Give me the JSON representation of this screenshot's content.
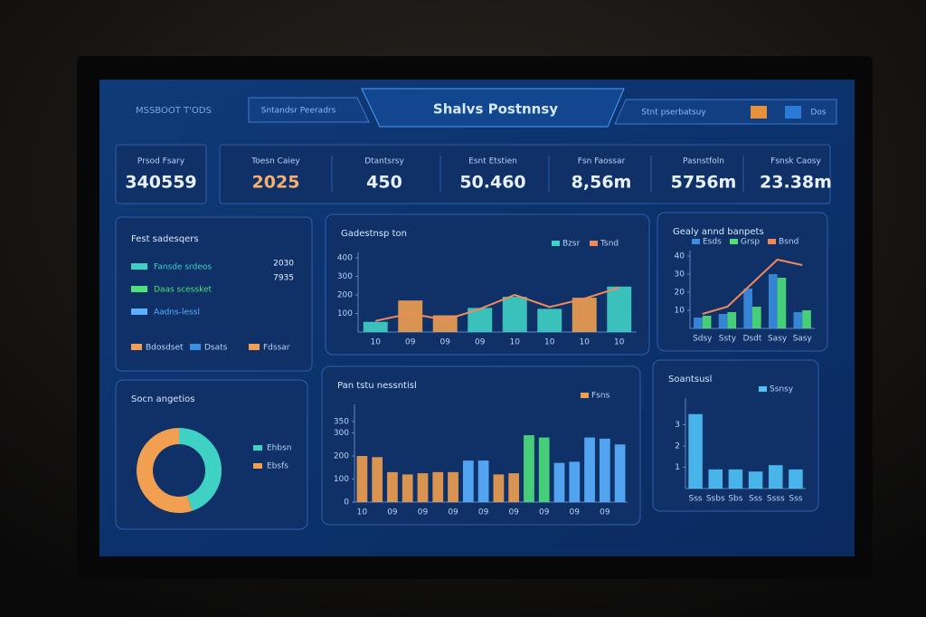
{
  "header": {
    "brand": "MSSBOOT T'ODS",
    "tab": "Sntandsr Peeradrs",
    "title": "Shalvs Postnnsy",
    "status": "Stnt pserbatsuy",
    "user": "Dos"
  },
  "kpis": [
    {
      "label": "Prsod Fsary",
      "value": "340559"
    },
    {
      "label": "Toesn Caiey",
      "value": "2025"
    },
    {
      "label": "Dtantsrsy",
      "value": "450"
    },
    {
      "label": "Esnt Etstien",
      "value": "50.460"
    },
    {
      "label": "Fsn Faossar",
      "value": "8,56m"
    },
    {
      "label": "Pasnstfoln",
      "value": "5756m"
    },
    {
      "label": "Fsnsk Caosy",
      "value": "23.38m"
    }
  ],
  "list_panel": {
    "title": "Fest sadesqers",
    "items": [
      {
        "label": "Fansde srdeos",
        "color": "#3fd1c4"
      },
      {
        "label": "Daas scessket",
        "color": "#4ee07a"
      },
      {
        "label": "Aadns-lessl",
        "color": "#5ab0ff"
      }
    ],
    "numbers": [
      "2030",
      "7935"
    ],
    "legend": [
      {
        "label": "Bdosdset",
        "color": "#f0a050"
      },
      {
        "label": "Dsats",
        "color": "#3b8fe0"
      },
      {
        "label": "Fdssar",
        "color": "#f0a050"
      }
    ]
  },
  "charts": [
    {
      "type": "bar",
      "title": "Gadestnsp ton",
      "categories": [
        "10",
        "09",
        "09",
        "09",
        "10",
        "10",
        "10",
        "10"
      ],
      "ylim": [
        0,
        400
      ],
      "yticks": [
        100,
        200,
        300,
        400
      ],
      "series": [
        {
          "name": "Bzsr",
          "type": "bar",
          "colors": [
            "#3fd1c4",
            "#f0a050",
            "#f0a050",
            "#3fd1c4",
            "#3fd1c4",
            "#3fd1c4",
            "#f0a050",
            "#3fd1c4"
          ],
          "values": [
            55,
            170,
            90,
            130,
            190,
            125,
            185,
            245
          ]
        },
        {
          "name": "Tsnd",
          "type": "line",
          "color": "#f08a5d",
          "values": [
            60,
            100,
            65,
            125,
            200,
            135,
            180,
            240
          ]
        }
      ]
    },
    {
      "type": "bar",
      "title": "Gealy annd banpets",
      "categories": [
        "Sdsy",
        "Ssty",
        "Dsdt",
        "Sasy",
        "Sasy"
      ],
      "ylim": [
        0,
        40
      ],
      "yticks": [
        10,
        20,
        30,
        40
      ],
      "series": [
        {
          "name": "Esds",
          "type": "bar",
          "color": "#3b8fe0",
          "values": [
            6,
            8,
            22,
            30,
            9
          ]
        },
        {
          "name": "Grsp",
          "type": "bar",
          "color": "#4ee07a",
          "values": [
            7,
            9,
            12,
            28,
            10
          ]
        },
        {
          "name": "Bsnd",
          "type": "line",
          "color": "#f08a5d",
          "values": [
            8,
            12,
            25,
            38,
            35
          ]
        }
      ]
    },
    {
      "type": "pie",
      "title": "Socn angetios",
      "categories": [
        "Ehbsn",
        "Ebsfs"
      ],
      "values": [
        45,
        55
      ],
      "colors": [
        "#3fd1c4",
        "#f0a050"
      ]
    },
    {
      "type": "bar",
      "title": "Pan tstu nessntisl",
      "categories": [
        "10",
        null,
        "09",
        null,
        "09",
        null,
        "09",
        null,
        "09",
        null,
        "09",
        null,
        "09",
        null,
        "09",
        null,
        "09",
        null
      ],
      "ylim": [
        0,
        400
      ],
      "yticks": [
        0,
        100,
        200,
        300,
        350
      ],
      "series": [
        {
          "name": "Fsns",
          "type": "bar",
          "colors": [
            "#f0a050",
            "#f0a050",
            "#f0a050",
            "#f0a050",
            "#f0a050",
            "#f0a050",
            "#f0a050",
            "#5ab0ff",
            "#5ab0ff",
            "#f0a050",
            "#f0a050",
            "#4ee07a",
            "#4ee07a",
            "#5ab0ff",
            "#5ab0ff",
            "#5ab0ff",
            "#5ab0ff",
            "#5ab0ff"
          ],
          "values": [
            200,
            195,
            130,
            120,
            125,
            130,
            130,
            180,
            180,
            120,
            125,
            290,
            280,
            170,
            175,
            280,
            275,
            250
          ]
        }
      ]
    },
    {
      "type": "bar",
      "title": "Soantsusl",
      "categories": [
        "Sss",
        "Ssbs",
        "Sbs",
        "Sss",
        "Ssss",
        "Sss"
      ],
      "ylim": [
        0,
        4
      ],
      "yticks": [
        1,
        2,
        3
      ],
      "series": [
        {
          "name": "Ssnsy",
          "type": "bar",
          "color": "#4fc3f7",
          "values": [
            3.5,
            0.9,
            0.9,
            0.8,
            1.1,
            0.9
          ]
        }
      ]
    }
  ]
}
